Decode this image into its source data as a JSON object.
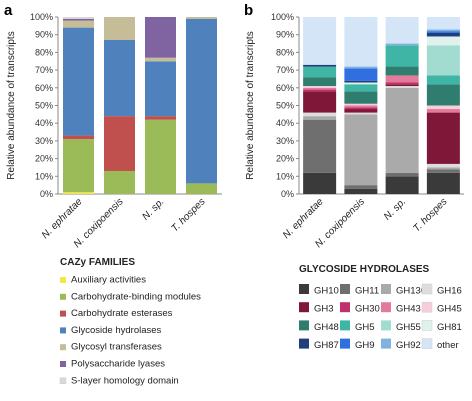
{
  "chart_data": [
    {
      "type": "bar",
      "stacked": true,
      "panel": "a",
      "ylabel": "Relative abundance of transcripts",
      "ylim": [
        0,
        100
      ],
      "yticks": [
        "0%",
        "10%",
        "20%",
        "30%",
        "40%",
        "50%",
        "60%",
        "70%",
        "80%",
        "90%",
        "100%"
      ],
      "categories": [
        "N. ephratae",
        "N. coxipoensis",
        "N. sp.",
        "T. hospes"
      ],
      "legend_title": "CAZy FAMILIES",
      "legend_position": "bottom",
      "series": [
        {
          "name": "Auxiliary activities",
          "color": "#f2e84b",
          "values": [
            1,
            0,
            0,
            0
          ]
        },
        {
          "name": "Carbohydrate-binding modules",
          "color": "#9bbb59",
          "values": [
            30,
            13,
            42,
            6
          ]
        },
        {
          "name": "Carbohydrate esterases",
          "color": "#c0504d",
          "values": [
            2,
            31,
            2,
            0
          ]
        },
        {
          "name": "Glycoside hydrolases",
          "color": "#4f81bd",
          "values": [
            61,
            43,
            31,
            93
          ]
        },
        {
          "name": "Glycosyl transferases",
          "color": "#c4bd97",
          "values": [
            4,
            13,
            2,
            1
          ]
        },
        {
          "name": "Polysaccharide lyases",
          "color": "#8064a2",
          "values": [
            1,
            0,
            23,
            0
          ]
        },
        {
          "name": "S-layer homology domain",
          "color": "#d9d9d9",
          "values": [
            1,
            0,
            0,
            0
          ]
        }
      ]
    },
    {
      "type": "bar",
      "stacked": true,
      "panel": "b",
      "ylabel": "Relative abundance of transcripts",
      "ylim": [
        0,
        100
      ],
      "yticks": [
        "0%",
        "10%",
        "20%",
        "30%",
        "40%",
        "50%",
        "60%",
        "70%",
        "80%",
        "90%",
        "100%"
      ],
      "categories": [
        "N. ephratae",
        "N. coxipoensis",
        "N. sp.",
        "T. hospes"
      ],
      "legend_title": "GLYCOSIDE HYDROLASES",
      "legend_position": "bottom",
      "series": [
        {
          "name": "GH10",
          "color": "#3a3a3a",
          "values": [
            12,
            3,
            10,
            12
          ]
        },
        {
          "name": "GH11",
          "color": "#6f6f6f",
          "values": [
            30,
            2,
            2,
            2
          ]
        },
        {
          "name": "GH130",
          "color": "#aaaaaa",
          "values": [
            2,
            40,
            48,
            1
          ]
        },
        {
          "name": "GH16",
          "color": "#dddddd",
          "values": [
            2,
            1,
            1,
            2
          ]
        },
        {
          "name": "GH3",
          "color": "#7f1738",
          "values": [
            12,
            2,
            1,
            29
          ]
        },
        {
          "name": "GH30",
          "color": "#c0306a",
          "values": [
            1,
            1,
            1,
            0
          ]
        },
        {
          "name": "GH43",
          "color": "#e27a9a",
          "values": [
            1,
            1,
            4,
            2
          ]
        },
        {
          "name": "GH45",
          "color": "#f7cfda",
          "values": [
            1,
            1,
            0,
            2
          ]
        },
        {
          "name": "GH48",
          "color": "#2e7d6e",
          "values": [
            5,
            7,
            5,
            12
          ]
        },
        {
          "name": "GH5",
          "color": "#3fb6a5",
          "values": [
            6,
            4,
            12,
            5
          ]
        },
        {
          "name": "GH55",
          "color": "#a2dbd0",
          "values": [
            0,
            0,
            0,
            17
          ]
        },
        {
          "name": "GH81",
          "color": "#dff2ee",
          "values": [
            0,
            1,
            0,
            5
          ]
        },
        {
          "name": "GH87",
          "color": "#1f3f7a",
          "values": [
            1,
            1,
            0,
            2
          ]
        },
        {
          "name": "GH9",
          "color": "#2f6fe0",
          "values": [
            0,
            7,
            0,
            1
          ]
        },
        {
          "name": "GH92",
          "color": "#7fb3df",
          "values": [
            0,
            1,
            1,
            1
          ]
        },
        {
          "name": "other",
          "color": "#d4e5f7",
          "values": [
            27,
            28,
            15,
            7
          ]
        }
      ]
    }
  ]
}
